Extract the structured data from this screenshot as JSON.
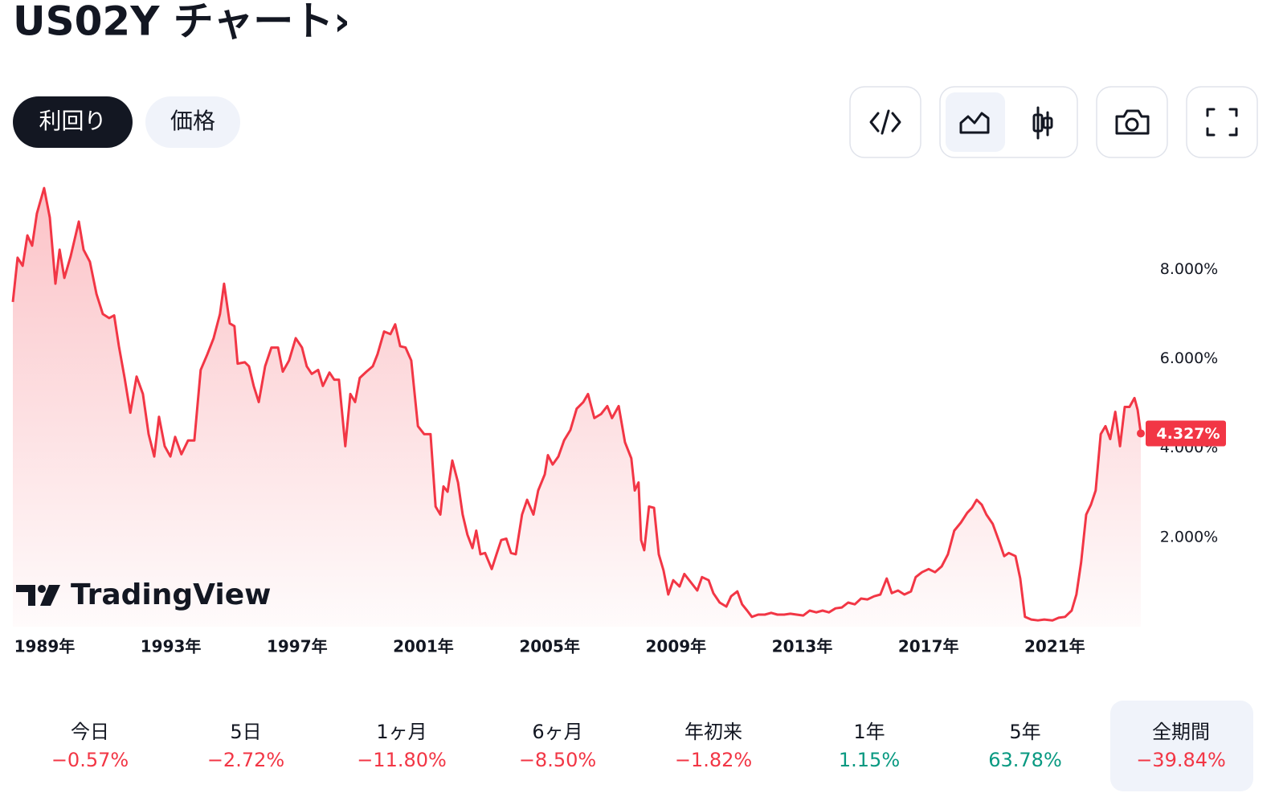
{
  "header": {
    "title": "US02Y チャート›"
  },
  "tabs": {
    "items": [
      "利回り",
      "価格"
    ],
    "active": 0
  },
  "chart_data": {
    "type": "line",
    "color": "#f23645",
    "x": [
      1988.2,
      1988.35,
      1988.51,
      1988.66,
      1988.81,
      1988.96,
      1989.19,
      1989.37,
      1989.55,
      1989.68,
      1989.83,
      1990.03,
      1990.29,
      1990.44,
      1990.64,
      1990.85,
      1991.05,
      1991.25,
      1991.41,
      1991.56,
      1991.74,
      1991.92,
      1992.12,
      1992.32,
      1992.5,
      1992.68,
      1992.83,
      1993.01,
      1993.19,
      1993.34,
      1993.54,
      1993.75,
      1993.95,
      1994.15,
      1994.36,
      1994.56,
      1994.76,
      1994.89,
      1995.07,
      1995.22,
      1995.32,
      1995.55,
      1995.68,
      1995.83,
      1995.99,
      1996.19,
      1996.39,
      1996.6,
      1996.75,
      1996.95,
      1997.16,
      1997.36,
      1997.51,
      1997.67,
      1997.87,
      1998.02,
      1998.23,
      1998.38,
      1998.53,
      1998.73,
      1998.89,
      1999.04,
      1999.19,
      1999.4,
      1999.6,
      1999.75,
      1999.96,
      2000.16,
      2000.31,
      2000.47,
      2000.64,
      2000.82,
      2001.03,
      2001.23,
      2001.43,
      2001.59,
      2001.74,
      2001.84,
      2001.97,
      2002.12,
      2002.3,
      2002.45,
      2002.6,
      2002.76,
      2002.88,
      2003.01,
      2003.16,
      2003.37,
      2003.52,
      2003.67,
      2003.83,
      2003.98,
      2004.13,
      2004.33,
      2004.49,
      2004.69,
      2004.84,
      2005.05,
      2005.15,
      2005.3,
      2005.48,
      2005.66,
      2005.86,
      2006.06,
      2006.27,
      2006.42,
      2006.62,
      2006.83,
      2007.03,
      2007.18,
      2007.39,
      2007.59,
      2007.79,
      2007.9,
      2008.02,
      2008.1,
      2008.2,
      2008.35,
      2008.51,
      2008.66,
      2008.81,
      2008.96,
      2009.12,
      2009.32,
      2009.47,
      2009.68,
      2009.88,
      2010.03,
      2010.24,
      2010.39,
      2010.59,
      2010.8,
      2010.95,
      2011.15,
      2011.3,
      2011.46,
      2011.61,
      2011.81,
      2012.02,
      2012.22,
      2012.42,
      2012.63,
      2012.83,
      2013.03,
      2013.24,
      2013.44,
      2013.65,
      2013.85,
      2014.05,
      2014.26,
      2014.46,
      2014.66,
      2014.87,
      2015.07,
      2015.27,
      2015.48,
      2015.68,
      2015.88,
      2016.04,
      2016.24,
      2016.44,
      2016.65,
      2016.8,
      2017.0,
      2017.21,
      2017.41,
      2017.62,
      2017.82,
      2018.02,
      2018.23,
      2018.43,
      2018.58,
      2018.73,
      2018.89,
      2019.04,
      2019.24,
      2019.45,
      2019.6,
      2019.75,
      2019.96,
      2020.11,
      2020.26,
      2020.46,
      2020.67,
      2020.87,
      2021.13,
      2021.33,
      2021.53,
      2021.74,
      2021.89,
      2022.04,
      2022.2,
      2022.35,
      2022.5,
      2022.66,
      2022.81,
      2022.96,
      2023.12,
      2023.27,
      2023.42,
      2023.57,
      2023.73,
      2023.83,
      2023.93
    ],
    "values": [
      7.27,
      8.26,
      8.08,
      8.76,
      8.53,
      9.25,
      9.82,
      9.16,
      7.68,
      8.44,
      7.81,
      8.29,
      9.07,
      8.44,
      8.17,
      7.45,
      7.0,
      6.91,
      6.97,
      6.28,
      5.57,
      4.79,
      5.6,
      5.21,
      4.31,
      3.81,
      4.7,
      4.04,
      3.81,
      4.25,
      3.86,
      4.17,
      4.17,
      5.75,
      6.1,
      6.46,
      7.0,
      7.68,
      6.79,
      6.73,
      5.89,
      5.92,
      5.83,
      5.39,
      5.03,
      5.83,
      6.25,
      6.25,
      5.71,
      5.96,
      6.46,
      6.25,
      5.83,
      5.66,
      5.75,
      5.39,
      5.69,
      5.53,
      5.53,
      4.04,
      5.21,
      5.03,
      5.57,
      5.71,
      5.83,
      6.1,
      6.61,
      6.55,
      6.77,
      6.28,
      6.25,
      5.96,
      4.49,
      4.31,
      4.31,
      2.69,
      2.51,
      3.14,
      3.02,
      3.72,
      3.23,
      2.51,
      2.06,
      1.76,
      2.15,
      1.62,
      1.65,
      1.29,
      1.62,
      1.94,
      1.97,
      1.65,
      1.62,
      2.51,
      2.84,
      2.51,
      3.05,
      3.41,
      3.84,
      3.63,
      3.81,
      4.17,
      4.4,
      4.88,
      5.03,
      5.21,
      4.67,
      4.76,
      4.94,
      4.67,
      4.94,
      4.13,
      3.77,
      3.05,
      3.23,
      1.94,
      1.71,
      2.69,
      2.66,
      1.62,
      1.26,
      0.72,
      1.04,
      0.9,
      1.18,
      0.99,
      0.81,
      1.11,
      1.04,
      0.75,
      0.54,
      0.45,
      0.68,
      0.79,
      0.5,
      0.36,
      0.22,
      0.27,
      0.27,
      0.31,
      0.27,
      0.27,
      0.29,
      0.27,
      0.25,
      0.36,
      0.32,
      0.36,
      0.32,
      0.41,
      0.43,
      0.54,
      0.5,
      0.63,
      0.61,
      0.68,
      0.72,
      1.08,
      0.75,
      0.81,
      0.72,
      0.79,
      1.11,
      1.22,
      1.29,
      1.22,
      1.35,
      1.62,
      2.15,
      2.33,
      2.55,
      2.66,
      2.84,
      2.73,
      2.51,
      2.3,
      1.89,
      1.58,
      1.65,
      1.58,
      1.08,
      0.22,
      0.16,
      0.14,
      0.16,
      0.14,
      0.2,
      0.22,
      0.36,
      0.72,
      1.44,
      2.51,
      2.73,
      3.05,
      4.31,
      4.49,
      4.2,
      4.81,
      4.04,
      4.92,
      4.92,
      5.12,
      4.85,
      4.327
    ],
    "xlim": [
      1988.2,
      2023.93
    ],
    "ylim": [
      0,
      10.2
    ],
    "xticks": [
      {
        "value": 1989,
        "label": "1989年"
      },
      {
        "value": 1993,
        "label": "1993年"
      },
      {
        "value": 1997,
        "label": "1997年"
      },
      {
        "value": 2001,
        "label": "2001年"
      },
      {
        "value": 2005,
        "label": "2005年"
      },
      {
        "value": 2009,
        "label": "2009年"
      },
      {
        "value": 2013,
        "label": "2013年"
      },
      {
        "value": 2017,
        "label": "2017年"
      },
      {
        "value": 2021,
        "label": "2021年"
      }
    ],
    "yticks": [
      {
        "value": 2,
        "label": "2.000%"
      },
      {
        "value": 4,
        "label": "4.000%"
      },
      {
        "value": 6,
        "label": "6.000%"
      },
      {
        "value": 8,
        "label": "8.000%"
      }
    ],
    "last_price": {
      "value": 4.327,
      "label": "4.327%"
    },
    "watermark": "TradingView"
  },
  "periods": {
    "active": 7,
    "items": [
      {
        "label": "今日",
        "change": -0.57,
        "change_label": "−0.57%"
      },
      {
        "label": "5日",
        "change": -2.72,
        "change_label": "−2.72%"
      },
      {
        "label": "1ヶ月",
        "change": -11.8,
        "change_label": "−11.80%"
      },
      {
        "label": "6ヶ月",
        "change": -8.5,
        "change_label": "−8.50%"
      },
      {
        "label": "年初来",
        "change": -1.82,
        "change_label": "−1.82%"
      },
      {
        "label": "1年",
        "change": 1.15,
        "change_label": "1.15%"
      },
      {
        "label": "5年",
        "change": 63.78,
        "change_label": "63.78%"
      },
      {
        "label": "全期間",
        "change": -39.84,
        "change_label": "−39.84%"
      }
    ]
  }
}
